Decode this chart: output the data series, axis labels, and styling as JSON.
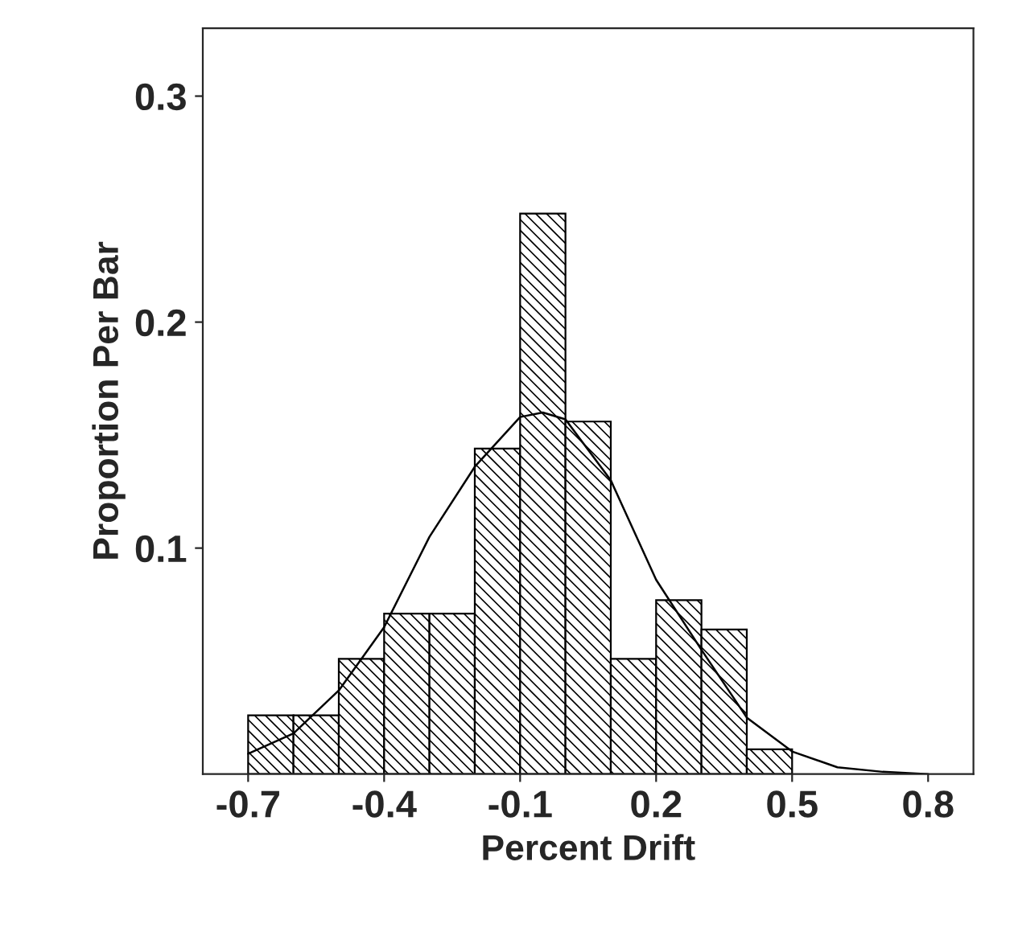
{
  "chart_data": {
    "type": "histogram",
    "xlabel": "Percent Drift",
    "ylabel": "Proportion Per Bar",
    "bins": [
      -0.7,
      -0.6,
      -0.5,
      -0.4,
      -0.3,
      -0.2,
      -0.1,
      0.0,
      0.1,
      0.2,
      0.3,
      0.4,
      0.5
    ],
    "values": [
      0.026,
      0.026,
      0.051,
      0.071,
      0.071,
      0.144,
      0.248,
      0.156,
      0.051,
      0.077,
      0.064,
      0.011
    ],
    "color": "#000000",
    "series": [
      {
        "type": "line",
        "color": "#000000",
        "x": [
          -0.7,
          -0.6,
          -0.5,
          -0.4,
          -0.3,
          -0.2,
          -0.1,
          -0.05,
          0.0,
          0.1,
          0.2,
          0.3,
          0.4,
          0.5,
          0.6,
          0.7,
          0.8
        ],
        "values": [
          0.009,
          0.018,
          0.037,
          0.065,
          0.105,
          0.136,
          0.158,
          0.16,
          0.157,
          0.13,
          0.086,
          0.055,
          0.025,
          0.01,
          0.003,
          0.001,
          0.0
        ]
      }
    ],
    "xlim": [
      -0.8,
      0.9
    ],
    "ylim": [
      0,
      0.33
    ],
    "xticks": [
      -0.7,
      -0.4,
      -0.1,
      0.2,
      0.5,
      0.8
    ],
    "yticks": [
      0.1,
      0.2,
      0.3
    ],
    "grid": false,
    "legend": false
  }
}
